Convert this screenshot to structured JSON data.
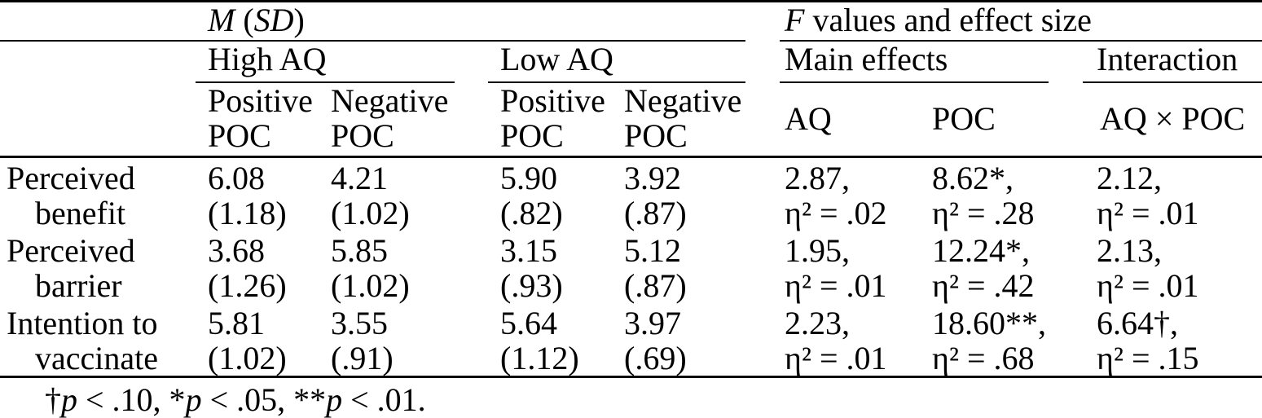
{
  "header": {
    "msd_title": [
      {
        "t": "M",
        "i": true
      },
      {
        "t": " ("
      },
      {
        "t": "SD",
        "i": true
      },
      {
        "t": ")"
      }
    ],
    "f_title": [
      {
        "t": "F",
        "i": true
      },
      {
        "t": " values and effect size"
      }
    ],
    "group_high_aq": "High AQ",
    "group_low_aq": "Low AQ",
    "group_main_effects": "Main effects",
    "group_interaction": "Interaction",
    "col_positive_poc_high": "Positive POC",
    "col_negative_poc_high": "Negative POC",
    "col_positive_poc_low": "Positive POC",
    "col_negative_poc_low": "Negative POC",
    "col_aq": "AQ",
    "col_poc": "POC",
    "col_aq_x_poc": "AQ × POC"
  },
  "rows": [
    {
      "label": "Perceived benefit",
      "cells": [
        [
          "6.08",
          "(1.18)"
        ],
        [
          "4.21",
          "(1.02)"
        ],
        [
          "5.90",
          "(.82)"
        ],
        [
          "3.92",
          "(.87)"
        ],
        [
          "2.87,",
          "η² = .02"
        ],
        [
          "8.62*,",
          "η² = .28"
        ],
        [
          "2.12,",
          "η² = .01"
        ]
      ]
    },
    {
      "label": "Perceived barrier",
      "cells": [
        [
          "3.68",
          "(1.26)"
        ],
        [
          "5.85",
          "(1.02)"
        ],
        [
          "3.15",
          "(.93)"
        ],
        [
          "5.12",
          "(.87)"
        ],
        [
          "1.95,",
          "η² = .01"
        ],
        [
          "12.24*,",
          "η² = .42"
        ],
        [
          "2.13,",
          "η² = .01"
        ]
      ]
    },
    {
      "label": "Intention to vaccinate",
      "cells": [
        [
          "5.81",
          "(1.02)"
        ],
        [
          "3.55",
          "(.91)"
        ],
        [
          "5.64",
          "(1.12)"
        ],
        [
          "3.97",
          "(.69)"
        ],
        [
          "2.23,",
          "η² = .01"
        ],
        [
          "18.60**,",
          "η² = .68"
        ],
        [
          "6.64†,",
          "η² = .15"
        ]
      ]
    }
  ],
  "footnote": [
    {
      "t": "†"
    },
    {
      "t": "p",
      "i": true
    },
    {
      "t": " < .10, *"
    },
    {
      "t": "p",
      "i": true
    },
    {
      "t": " < .05, **"
    },
    {
      "t": "p",
      "i": true
    },
    {
      "t": " < .01."
    }
  ]
}
